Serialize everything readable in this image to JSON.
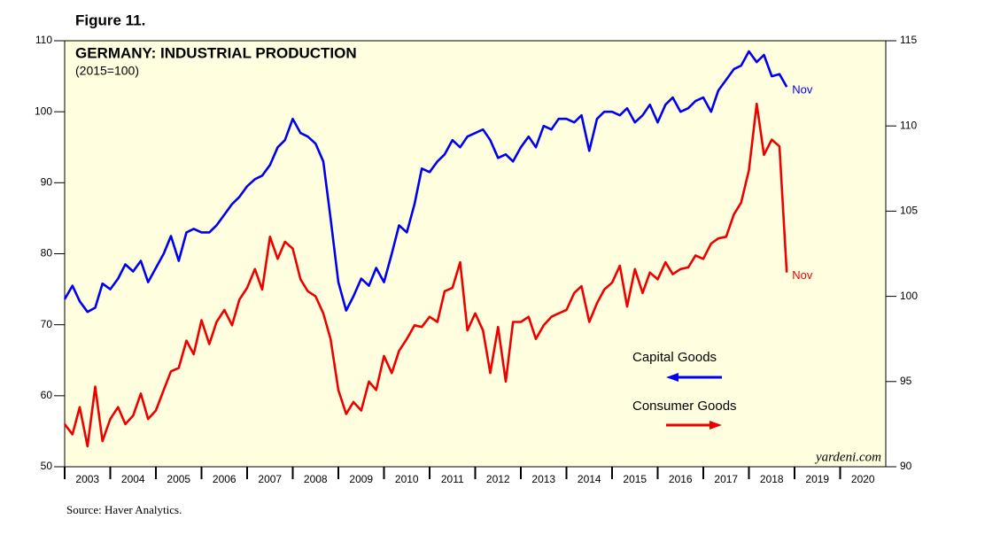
{
  "chart_data": {
    "type": "line",
    "figure_label": "Figure 11.",
    "title": "GERMANY: INDUSTRIAL PRODUCTION",
    "subtitle": "(2015=100)",
    "watermark": "yardeni.com",
    "source": "Source: Haver Analytics.",
    "annotations": [
      "Nov",
      "Nov"
    ],
    "xlim": [
      2003,
      2021
    ],
    "xticks": [
      2003,
      2004,
      2005,
      2006,
      2007,
      2008,
      2009,
      2010,
      2011,
      2012,
      2013,
      2014,
      2015,
      2016,
      2017,
      2018,
      2019,
      2020
    ],
    "ylim": [
      50,
      110
    ],
    "yticks": [
      50,
      60,
      70,
      80,
      90,
      100,
      110
    ],
    "y2lim": [
      90,
      115
    ],
    "y2ticks": [
      90,
      95,
      100,
      105,
      110,
      115
    ],
    "x": [
      2003,
      2003.17,
      2003.33,
      2003.5,
      2003.67,
      2003.83,
      2004,
      2004.17,
      2004.33,
      2004.5,
      2004.67,
      2004.83,
      2005,
      2005.17,
      2005.33,
      2005.5,
      2005.67,
      2005.83,
      2006,
      2006.17,
      2006.33,
      2006.5,
      2006.67,
      2006.83,
      2007,
      2007.17,
      2007.33,
      2007.5,
      2007.67,
      2007.83,
      2008,
      2008.17,
      2008.33,
      2008.5,
      2008.67,
      2008.83,
      2009,
      2009.17,
      2009.33,
      2009.5,
      2009.67,
      2009.83,
      2010,
      2010.17,
      2010.33,
      2010.5,
      2010.67,
      2010.83,
      2011,
      2011.17,
      2011.33,
      2011.5,
      2011.67,
      2011.83,
      2012,
      2012.17,
      2012.33,
      2012.5,
      2012.67,
      2012.83,
      2013,
      2013.17,
      2013.33,
      2013.5,
      2013.67,
      2013.83,
      2014,
      2014.17,
      2014.33,
      2014.5,
      2014.67,
      2014.83,
      2015,
      2015.17,
      2015.33,
      2015.5,
      2015.67,
      2015.83,
      2016,
      2016.17,
      2016.33,
      2016.5,
      2016.67,
      2016.83,
      2017,
      2017.17,
      2017.33,
      2017.5,
      2017.67,
      2017.83,
      2018,
      2018.17,
      2018.33,
      2018.5,
      2018.67,
      2018.83
    ],
    "series": [
      {
        "name": "Capital Goods",
        "color": "#0000ee",
        "axis": "y",
        "values": [
          73.6,
          75.5,
          73.3,
          71.8,
          72.4,
          75.8,
          75,
          76.5,
          78.5,
          77.5,
          79,
          76,
          78,
          80,
          82.5,
          79,
          83,
          83.5,
          83,
          83,
          84,
          85.5,
          87,
          88,
          89.5,
          90.5,
          91,
          92.5,
          95,
          96,
          99,
          97,
          96.5,
          95.5,
          93,
          85,
          76,
          72,
          74,
          76.5,
          75.5,
          78,
          76,
          80,
          84,
          83,
          87,
          92,
          91.5,
          93,
          94,
          96,
          95,
          96.5,
          97,
          97.5,
          96,
          93.5,
          94,
          93,
          95,
          96.5,
          95,
          98,
          97.5,
          99,
          99,
          98.5,
          99.5,
          94.5,
          99,
          100,
          100,
          99.5,
          100.5,
          98.5,
          99.5,
          101,
          98.5,
          101,
          102,
          100,
          100.5,
          101.5,
          102,
          100,
          103,
          104.5,
          106,
          106.5,
          108.5,
          107,
          108,
          105,
          105.3,
          103.5
        ]
      },
      {
        "name": "Consumer Goods",
        "color": "#ee0000",
        "axis": "y2",
        "values": [
          92.5,
          91.9,
          93.5,
          91.2,
          94.7,
          91.5,
          92.8,
          93.5,
          92.5,
          93.0,
          94.3,
          92.8,
          93.3,
          94.5,
          95.6,
          95.8,
          97.4,
          96.6,
          98.6,
          97.2,
          98.5,
          99.2,
          98.3,
          99.8,
          100.5,
          101.6,
          100.4,
          103.5,
          102.2,
          103.2,
          102.8,
          101.0,
          100.3,
          100.0,
          99.0,
          97.5,
          94.5,
          93.1,
          93.8,
          93.3,
          95.0,
          94.5,
          96.5,
          95.5,
          96.8,
          97.5,
          98.3,
          98.2,
          98.8,
          98.5,
          100.3,
          100.5,
          102.0,
          98.0,
          99.0,
          98.0,
          95.5,
          98.2,
          95.0,
          98.5,
          98.5,
          98.8,
          97.5,
          98.3,
          98.8,
          99.0,
          99.2,
          100.2,
          100.6,
          98.5,
          99.6,
          100.4,
          100.8,
          101.8,
          99.4,
          101.6,
          100.2,
          101.4,
          101.0,
          102.0,
          101.3,
          101.6,
          101.7,
          102.4,
          102.2,
          103.1,
          103.4,
          103.5,
          104.8,
          105.5,
          107.4,
          111.3,
          108.3,
          109.2,
          108.8,
          101.4
        ]
      }
    ]
  }
}
